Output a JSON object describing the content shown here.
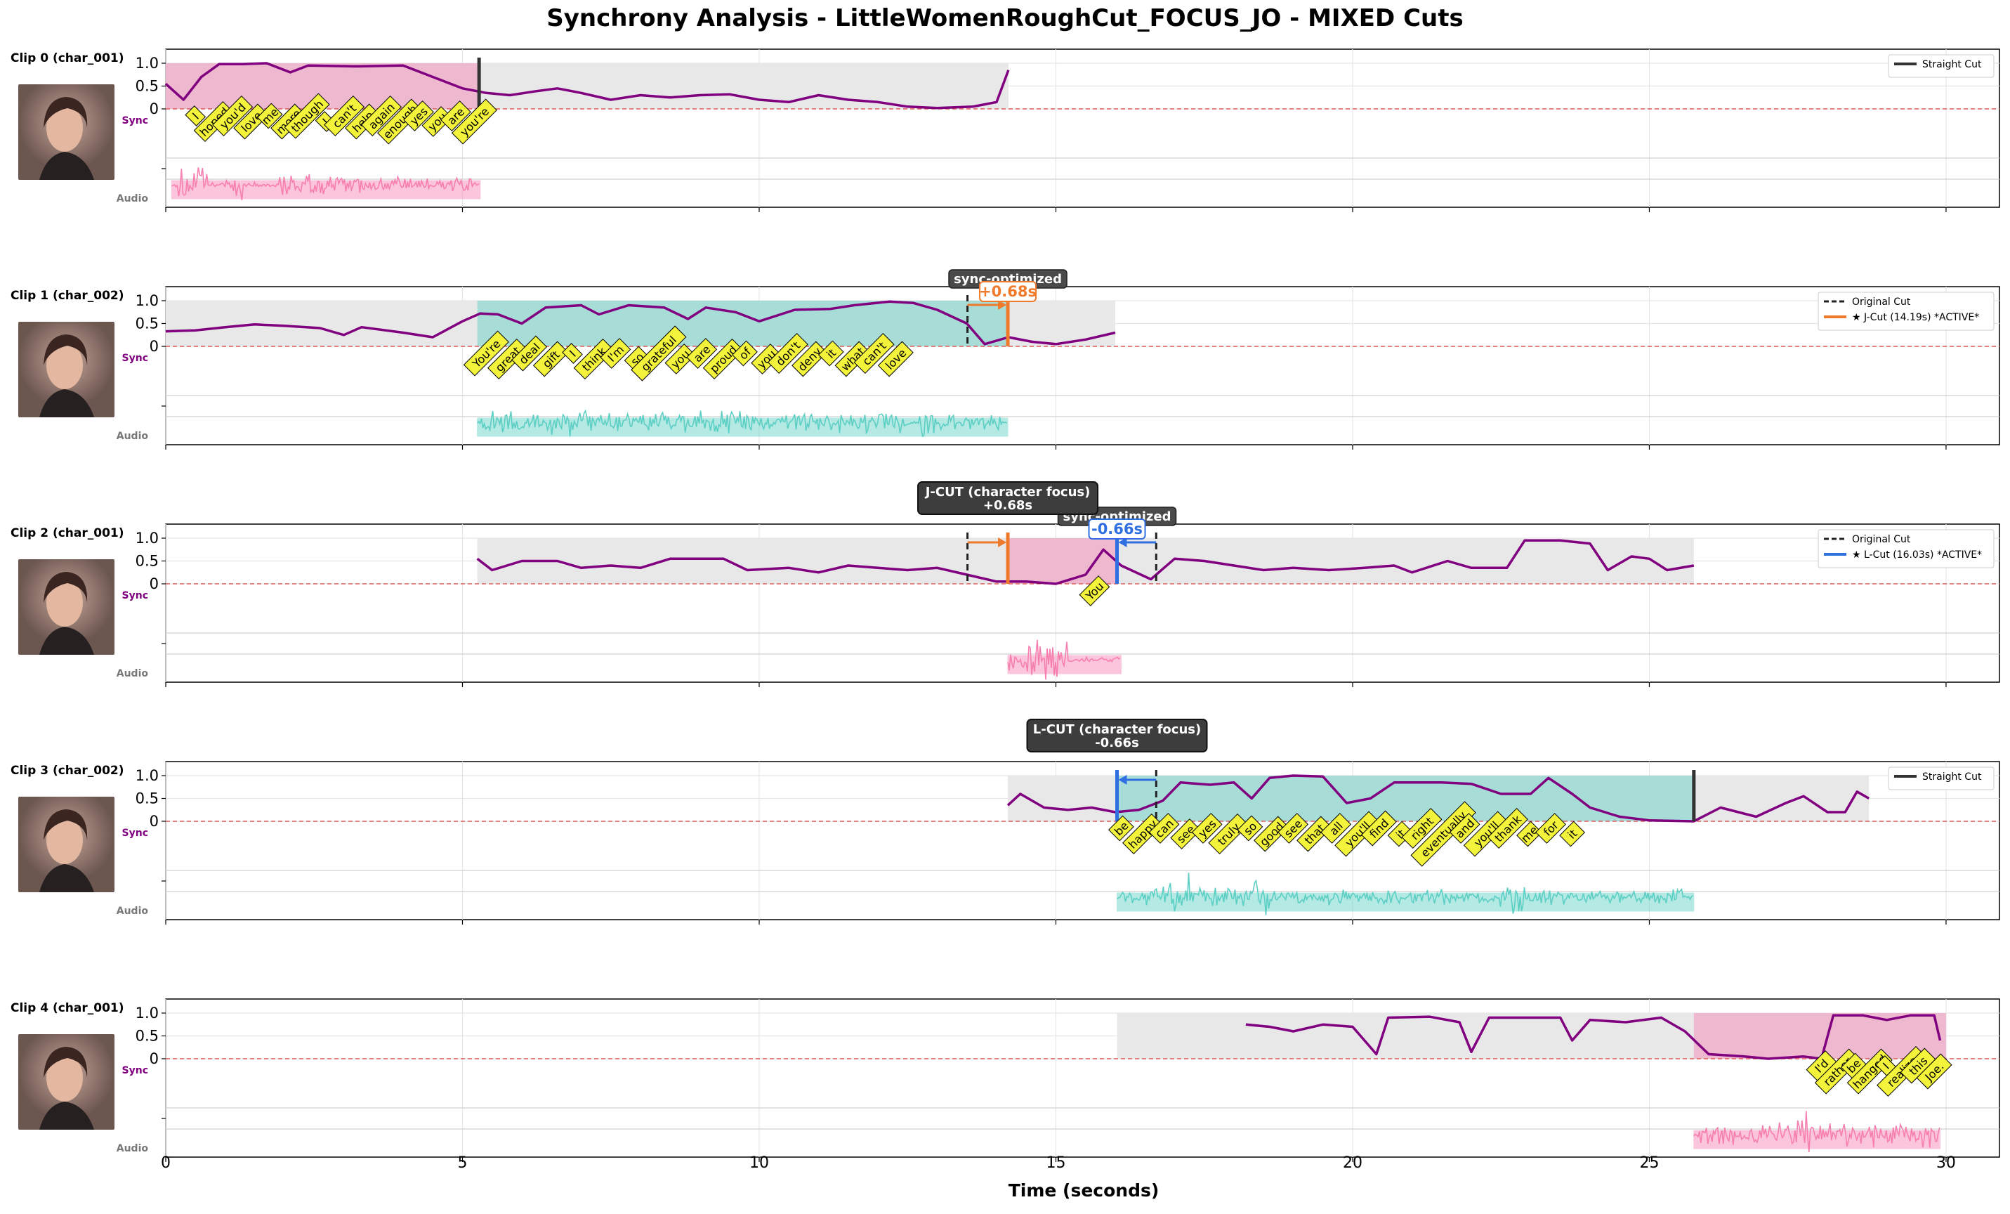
{
  "title": "Synchrony Analysis - LittleWomenRoughCut_FOCUS_JO - MIXED Cuts",
  "xlabel": "Time (seconds)",
  "side_labels": {
    "sync": "Sync",
    "audio": "Audio"
  },
  "colors": {
    "char_001": "#f77fb0",
    "char_002": "#5ccfc4",
    "sync_line": "#800080",
    "j_cut": "#f07a2b",
    "l_cut": "#2f6fe0",
    "word_label_bg": "#f3f33b",
    "zero_line": "#e05a5a"
  },
  "chart_data": {
    "type": "line",
    "xlim": [
      0,
      30.9
    ],
    "x_ticks": [
      0,
      5,
      10,
      15,
      20,
      25,
      30
    ],
    "sync_ylim": [
      0,
      1
    ],
    "sync_y_ticks": [
      "0",
      "0.5",
      "1.0"
    ],
    "clips": [
      {
        "label": "Clip 0 (char_001)",
        "speaker": "char_001",
        "clip_span": [
          0,
          14.2
        ],
        "speaker_span": [
          0,
          5.25
        ],
        "sync_curve": [
          [
            0,
            0.55
          ],
          [
            0.3,
            0.2
          ],
          [
            0.6,
            0.7
          ],
          [
            0.9,
            0.98
          ],
          [
            1.3,
            0.98
          ],
          [
            1.7,
            1.0
          ],
          [
            2.1,
            0.8
          ],
          [
            2.4,
            0.95
          ],
          [
            3.2,
            0.93
          ],
          [
            4.0,
            0.95
          ],
          [
            4.5,
            0.7
          ],
          [
            5.0,
            0.45
          ],
          [
            5.4,
            0.35
          ],
          [
            5.8,
            0.3
          ],
          [
            6.2,
            0.38
          ],
          [
            6.6,
            0.45
          ],
          [
            7.0,
            0.35
          ],
          [
            7.5,
            0.2
          ],
          [
            8.0,
            0.3
          ],
          [
            8.5,
            0.25
          ],
          [
            9.0,
            0.3
          ],
          [
            9.5,
            0.32
          ],
          [
            10.0,
            0.2
          ],
          [
            10.5,
            0.15
          ],
          [
            11.0,
            0.3
          ],
          [
            11.5,
            0.2
          ],
          [
            12.0,
            0.15
          ],
          [
            12.5,
            0.05
          ],
          [
            13.0,
            0.02
          ],
          [
            13.6,
            0.05
          ],
          [
            14.0,
            0.15
          ],
          [
            14.2,
            0.85
          ]
        ],
        "audio_span": [
          0.1,
          5.3
        ],
        "audio_bursts": [
          [
            0.2,
            0.7,
            0.8
          ],
          [
            1.0,
            1.3,
            0.6
          ],
          [
            1.1,
            1.3,
            1.0
          ],
          [
            1.9,
            3.0,
            0.45
          ],
          [
            3.0,
            5.2,
            0.35
          ]
        ],
        "words": [
          "I",
          "hoped",
          "you'd",
          "love",
          "me",
          "more",
          "though",
          "I",
          "can't",
          "help",
          "again",
          "enough",
          "yes",
          "you",
          "are",
          "you're"
        ],
        "words_span": [
          0.5,
          5.2
        ],
        "cuts": [
          {
            "kind": "straight",
            "time": 5.28
          }
        ],
        "legend": [
          {
            "label": "Straight Cut",
            "style": "straight"
          }
        ]
      },
      {
        "label": "Clip 1 (char_002)",
        "speaker": "char_002",
        "clip_span": [
          0,
          16.0
        ],
        "speaker_span": [
          5.25,
          14.19
        ],
        "sync_curve": [
          [
            0,
            0.33
          ],
          [
            0.5,
            0.35
          ],
          [
            1.0,
            0.42
          ],
          [
            1.5,
            0.48
          ],
          [
            2.0,
            0.45
          ],
          [
            2.6,
            0.4
          ],
          [
            3.0,
            0.25
          ],
          [
            3.3,
            0.42
          ],
          [
            4.0,
            0.3
          ],
          [
            4.5,
            0.2
          ],
          [
            5.0,
            0.55
          ],
          [
            5.3,
            0.72
          ],
          [
            5.6,
            0.7
          ],
          [
            6.0,
            0.5
          ],
          [
            6.4,
            0.85
          ],
          [
            7.0,
            0.9
          ],
          [
            7.3,
            0.7
          ],
          [
            7.8,
            0.9
          ],
          [
            8.4,
            0.85
          ],
          [
            8.8,
            0.6
          ],
          [
            9.1,
            0.85
          ],
          [
            9.6,
            0.75
          ],
          [
            10.0,
            0.55
          ],
          [
            10.6,
            0.8
          ],
          [
            11.2,
            0.82
          ],
          [
            11.6,
            0.9
          ],
          [
            12.2,
            0.98
          ],
          [
            12.6,
            0.95
          ],
          [
            13.0,
            0.8
          ],
          [
            13.5,
            0.5
          ],
          [
            13.8,
            0.05
          ],
          [
            14.2,
            0.2
          ],
          [
            14.6,
            0.1
          ],
          [
            15.0,
            0.05
          ],
          [
            15.5,
            0.15
          ],
          [
            16.0,
            0.3
          ]
        ],
        "audio_span": [
          5.25,
          14.19
        ],
        "audio_bursts": [
          [
            5.3,
            5.6,
            0.8
          ],
          [
            5.6,
            12.5,
            0.45
          ],
          [
            6.8,
            7.2,
            0.7
          ],
          [
            12.7,
            13.0,
            0.7
          ],
          [
            13.0,
            14.1,
            0.3
          ]
        ],
        "words": [
          "You're",
          "great",
          "deal",
          "gift",
          "I",
          "think",
          "I'm",
          "so",
          "grateful",
          "you",
          "are",
          "proud",
          "of",
          "you",
          "don't",
          "deny",
          "it",
          "what",
          "can't",
          "love"
        ],
        "words_span": [
          5.4,
          12.3
        ],
        "cuts": [
          {
            "kind": "original",
            "time": 13.51
          },
          {
            "kind": "jcut",
            "time": 14.19
          }
        ],
        "tag": {
          "text": "+0.68s",
          "time": 14.19,
          "kind": "jcut"
        },
        "box": {
          "text": "sync-optimized",
          "time": 14.19
        },
        "legend": [
          {
            "label": "Original Cut",
            "style": "original"
          },
          {
            "label": "★ J-Cut (14.19s) *ACTIVE*",
            "style": "jcut"
          }
        ]
      },
      {
        "label": "Clip 2 (char_001)",
        "speaker": "char_001",
        "clip_span": [
          5.25,
          25.75
        ],
        "speaker_span": [
          14.19,
          16.03
        ],
        "sync_curve": [
          [
            5.25,
            0.55
          ],
          [
            5.5,
            0.3
          ],
          [
            6.0,
            0.5
          ],
          [
            6.6,
            0.5
          ],
          [
            7.0,
            0.35
          ],
          [
            7.5,
            0.4
          ],
          [
            8.0,
            0.35
          ],
          [
            8.5,
            0.55
          ],
          [
            9.4,
            0.55
          ],
          [
            9.8,
            0.3
          ],
          [
            10.5,
            0.35
          ],
          [
            11.0,
            0.25
          ],
          [
            11.5,
            0.4
          ],
          [
            12.0,
            0.35
          ],
          [
            12.5,
            0.3
          ],
          [
            13.0,
            0.35
          ],
          [
            13.5,
            0.2
          ],
          [
            14.0,
            0.05
          ],
          [
            14.5,
            0.05
          ],
          [
            15.0,
            0.0
          ],
          [
            15.5,
            0.2
          ],
          [
            15.8,
            0.75
          ],
          [
            16.1,
            0.4
          ],
          [
            16.6,
            0.1
          ],
          [
            17.0,
            0.55
          ],
          [
            17.5,
            0.5
          ],
          [
            18.0,
            0.4
          ],
          [
            18.5,
            0.3
          ],
          [
            19.0,
            0.35
          ],
          [
            19.6,
            0.3
          ],
          [
            20.2,
            0.35
          ],
          [
            20.7,
            0.4
          ],
          [
            21.0,
            0.25
          ],
          [
            21.6,
            0.5
          ],
          [
            22.0,
            0.35
          ],
          [
            22.6,
            0.35
          ],
          [
            22.9,
            0.95
          ],
          [
            23.5,
            0.95
          ],
          [
            24.0,
            0.88
          ],
          [
            24.3,
            0.3
          ],
          [
            24.7,
            0.6
          ],
          [
            25.0,
            0.55
          ],
          [
            25.3,
            0.3
          ],
          [
            25.75,
            0.4
          ]
        ],
        "audio_span": [
          14.19,
          16.1
        ],
        "audio_bursts": [
          [
            14.2,
            14.5,
            0.4
          ],
          [
            14.5,
            15.2,
            0.9
          ]
        ],
        "words": [
          "You"
        ],
        "words_span": [
          15.65,
          15.65
        ],
        "cuts": [
          {
            "kind": "original",
            "time": 13.51
          },
          {
            "kind": "jcut",
            "time": 14.19
          },
          {
            "kind": "lcut",
            "time": 16.03
          },
          {
            "kind": "original",
            "time": 16.69
          }
        ],
        "tag": {
          "text": "-0.66s",
          "time": 16.03,
          "kind": "lcut"
        },
        "box": {
          "text": "sync-optimized",
          "time": 16.03
        },
        "overbox": {
          "text": "J-CUT (character focus)\n+0.68s",
          "time": 14.19
        },
        "legend": [
          {
            "label": "Original Cut",
            "style": "original"
          },
          {
            "label": "★ L-Cut (16.03s) *ACTIVE*",
            "style": "lcut"
          }
        ]
      },
      {
        "label": "Clip 3 (char_002)",
        "speaker": "char_002",
        "clip_span": [
          14.19,
          28.7
        ],
        "speaker_span": [
          16.03,
          25.75
        ],
        "sync_curve": [
          [
            14.19,
            0.35
          ],
          [
            14.4,
            0.6
          ],
          [
            14.8,
            0.3
          ],
          [
            15.2,
            0.25
          ],
          [
            15.6,
            0.3
          ],
          [
            16.0,
            0.2
          ],
          [
            16.4,
            0.25
          ],
          [
            16.8,
            0.45
          ],
          [
            17.1,
            0.85
          ],
          [
            17.6,
            0.8
          ],
          [
            18.0,
            0.85
          ],
          [
            18.3,
            0.5
          ],
          [
            18.6,
            0.95
          ],
          [
            19.0,
            1.0
          ],
          [
            19.5,
            0.98
          ],
          [
            19.9,
            0.4
          ],
          [
            20.3,
            0.5
          ],
          [
            20.7,
            0.85
          ],
          [
            21.5,
            0.85
          ],
          [
            22.0,
            0.82
          ],
          [
            22.5,
            0.6
          ],
          [
            23.0,
            0.6
          ],
          [
            23.3,
            0.95
          ],
          [
            23.7,
            0.6
          ],
          [
            24.0,
            0.3
          ],
          [
            24.5,
            0.1
          ],
          [
            25.0,
            0.02
          ],
          [
            25.75,
            0.0
          ],
          [
            26.2,
            0.3
          ],
          [
            26.8,
            0.1
          ],
          [
            27.3,
            0.4
          ],
          [
            27.6,
            0.55
          ],
          [
            28.0,
            0.2
          ],
          [
            28.3,
            0.2
          ],
          [
            28.5,
            0.65
          ],
          [
            28.7,
            0.5
          ]
        ],
        "audio_span": [
          16.03,
          25.75
        ],
        "audio_bursts": [
          [
            16.1,
            16.8,
            0.35
          ],
          [
            16.8,
            17.3,
            0.9
          ],
          [
            17.3,
            18.2,
            0.4
          ],
          [
            18.2,
            18.6,
            0.8
          ],
          [
            18.6,
            25.7,
            0.3
          ],
          [
            22.4,
            22.9,
            0.7
          ]
        ],
        "words": [
          "be",
          "happy",
          "can",
          "see",
          "yes",
          "truly",
          "so",
          "good",
          "see",
          "that",
          "all",
          "you'll",
          "find",
          "it",
          "right",
          "eventually",
          "and",
          "you'll",
          "thank",
          "me",
          "for",
          "it"
        ],
        "words_span": [
          16.1,
          23.7
        ],
        "cuts": [
          {
            "kind": "lcut",
            "time": 16.03
          },
          {
            "kind": "original",
            "time": 16.69
          },
          {
            "kind": "straight",
            "time": 25.75
          }
        ],
        "overbox": {
          "text": "L-CUT (character focus)\n-0.66s",
          "time": 16.03
        },
        "legend": [
          {
            "label": "Straight Cut",
            "style": "straight"
          }
        ]
      },
      {
        "label": "Clip 4 (char_001)",
        "speaker": "char_001",
        "clip_span": [
          16.03,
          30.0
        ],
        "speaker_span": [
          25.75,
          30.0
        ],
        "sync_curve": [
          [
            18.2,
            0.75
          ],
          [
            18.6,
            0.7
          ],
          [
            19.0,
            0.6
          ],
          [
            19.5,
            0.75
          ],
          [
            20.0,
            0.7
          ],
          [
            20.4,
            0.1
          ],
          [
            20.6,
            0.9
          ],
          [
            21.3,
            0.92
          ],
          [
            21.8,
            0.8
          ],
          [
            22.0,
            0.15
          ],
          [
            22.3,
            0.9
          ],
          [
            23.5,
            0.9
          ],
          [
            23.7,
            0.4
          ],
          [
            24.0,
            0.85
          ],
          [
            24.6,
            0.8
          ],
          [
            25.2,
            0.9
          ],
          [
            25.6,
            0.6
          ],
          [
            26.0,
            0.1
          ],
          [
            26.6,
            0.05
          ],
          [
            27.0,
            0.0
          ],
          [
            27.6,
            0.05
          ],
          [
            27.9,
            0.0
          ],
          [
            28.1,
            0.95
          ],
          [
            28.6,
            0.95
          ],
          [
            29.0,
            0.85
          ],
          [
            29.4,
            0.95
          ],
          [
            29.8,
            0.95
          ],
          [
            29.9,
            0.4
          ]
        ],
        "audio_span": [
          25.75,
          29.9
        ],
        "audio_bursts": [
          [
            25.8,
            26.8,
            0.5
          ],
          [
            26.8,
            27.8,
            0.6
          ],
          [
            27.5,
            27.7,
            1.0
          ],
          [
            27.8,
            29.9,
            0.5
          ]
        ],
        "words": [
          "I'd",
          "rather",
          "be",
          "hanged",
          "I",
          "realize",
          "this",
          "Joe."
        ],
        "words_span": [
          27.9,
          29.8
        ],
        "cuts": [],
        "legend": []
      }
    ]
  }
}
